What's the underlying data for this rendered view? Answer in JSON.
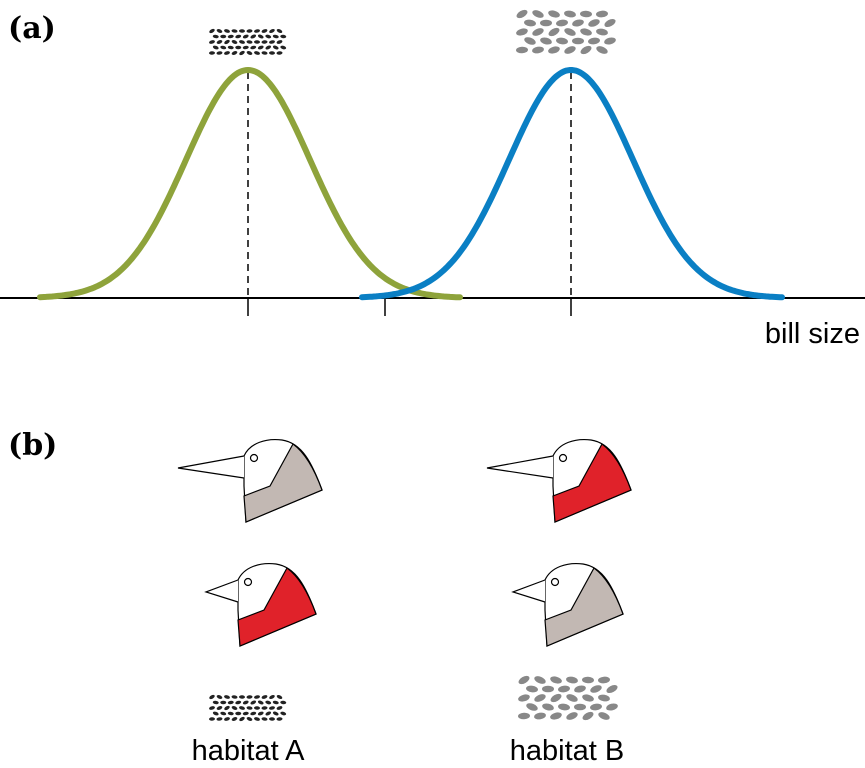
{
  "panels": [
    {
      "label": "(a)",
      "axis_label": "bill size"
    },
    {
      "label": "(b)",
      "habitats": [
        "habitat A",
        "habitat B"
      ]
    }
  ]
}
